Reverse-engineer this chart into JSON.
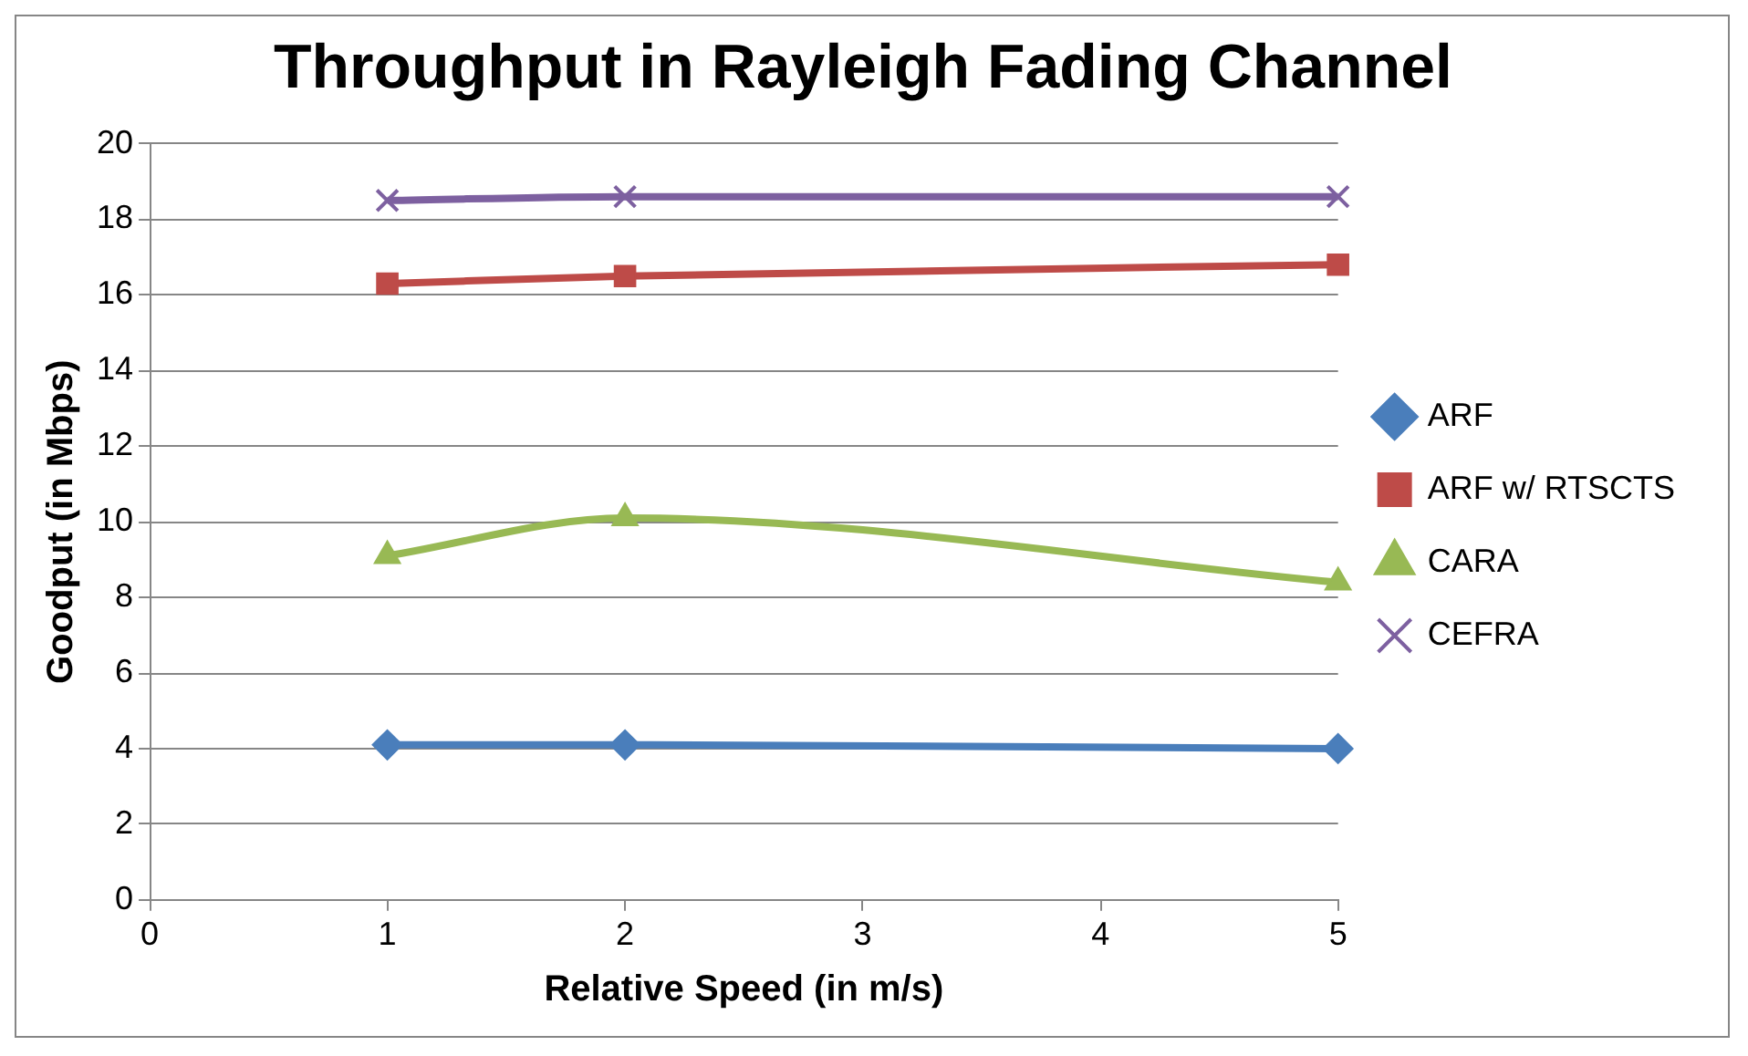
{
  "chart_data": {
    "type": "line",
    "title": "Throughput in Rayleigh Fading Channel",
    "xlabel": "Relative Speed (in m/s)",
    "ylabel": "Goodput (in Mbps)",
    "x": [
      1,
      2,
      5
    ],
    "xlim": [
      0,
      5
    ],
    "xticks": [
      0,
      1,
      2,
      3,
      4,
      5
    ],
    "ylim": [
      0,
      20
    ],
    "yticks": [
      0,
      2,
      4,
      6,
      8,
      10,
      12,
      14,
      16,
      18,
      20
    ],
    "grid": "y",
    "legend": "right",
    "series": [
      {
        "name": "ARF",
        "color": "#4a7ebb",
        "marker": "diamond",
        "values": [
          4.1,
          4.1,
          4.0
        ]
      },
      {
        "name": "ARF w/ RTSCTS",
        "color": "#be4b48",
        "marker": "square",
        "values": [
          16.3,
          16.5,
          16.8
        ]
      },
      {
        "name": "CARA",
        "color": "#98b954",
        "marker": "triangle",
        "values": [
          9.1,
          10.1,
          8.4
        ]
      },
      {
        "name": "CEFRA",
        "color": "#7d60a0",
        "marker": "cross",
        "values": [
          18.5,
          18.6,
          18.6
        ]
      }
    ]
  }
}
